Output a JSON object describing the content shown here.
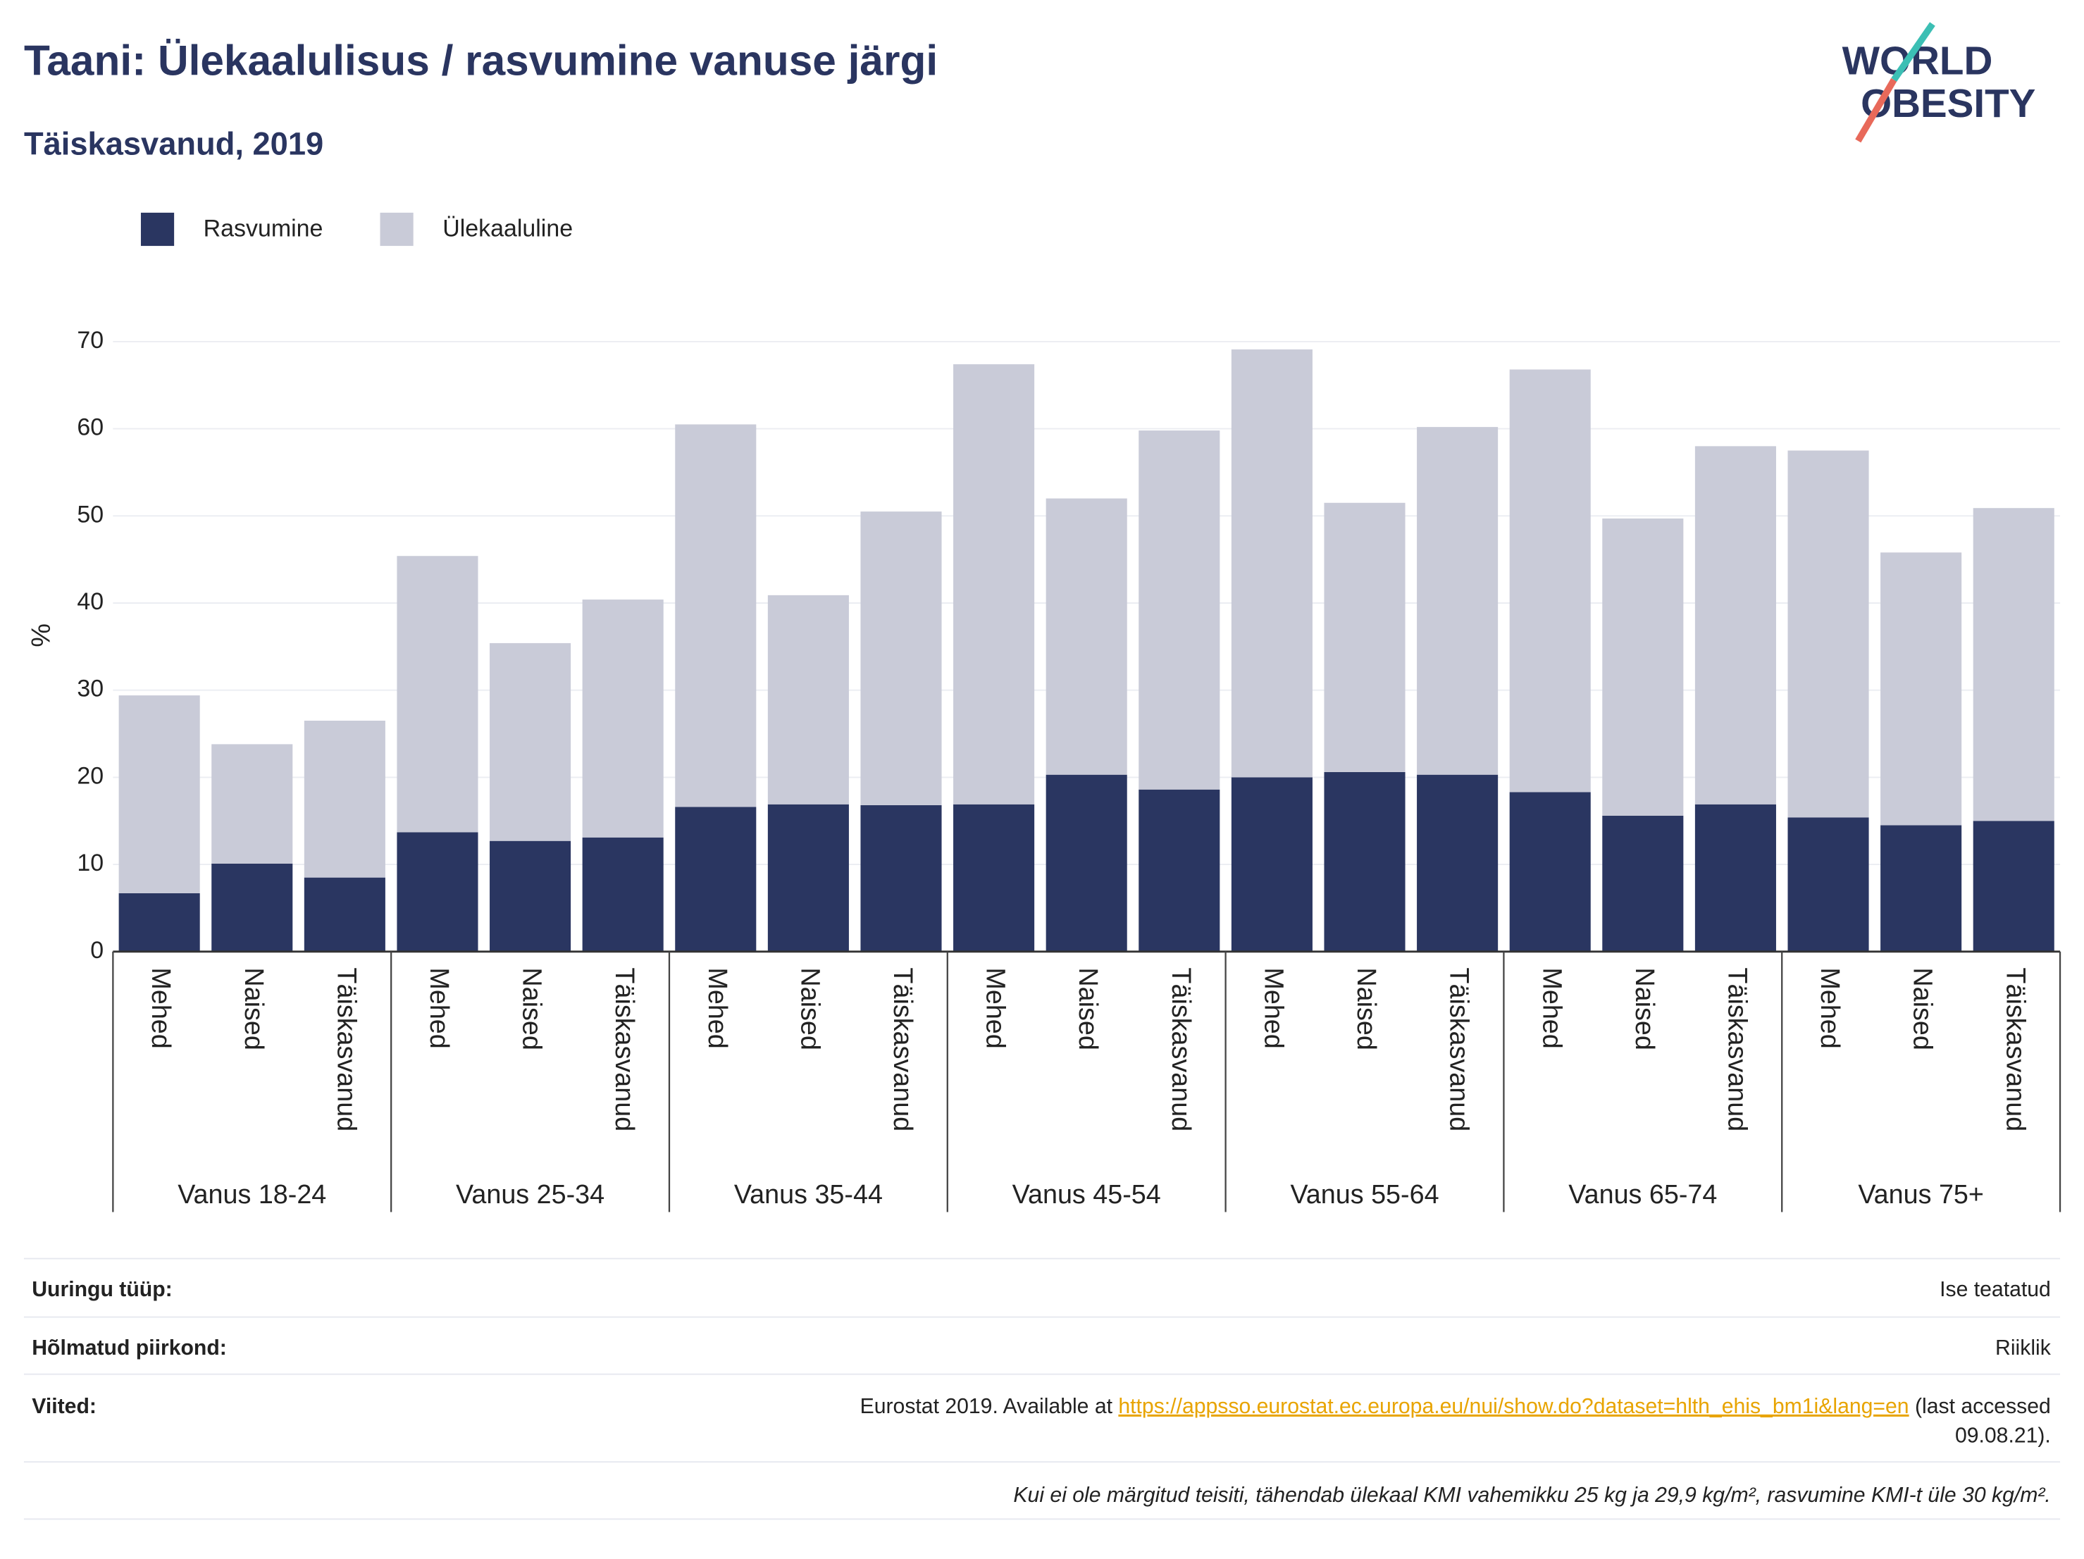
{
  "chart_data": {
    "type": "stacked_bar",
    "title": "Taani: Ülekaalulisus / rasvumine vanuse järgi",
    "subtitle": "Täiskasvanud, 2019",
    "y_label": "%",
    "groups": [
      "Vanus 18-24",
      "Vanus 25-34",
      "Vanus 35-44",
      "Vanus 45-54",
      "Vanus 55-64",
      "Vanus 65-74",
      "Vanus 75+"
    ],
    "categories": [
      "Mehed",
      "Naised",
      "Täiskasvanud",
      "Mehed",
      "Naised",
      "Täiskasvanud",
      "Mehed",
      "Naised",
      "Täiskasvanud",
      "Mehed",
      "Naised",
      "Täiskasvanud",
      "Mehed",
      "Naised",
      "Täiskasvanud",
      "Mehed",
      "Naised",
      "Täiskasvanud",
      "Mehed",
      "Naised",
      "Täiskasvanud"
    ],
    "series": [
      {
        "name": "Rasvumine",
        "color": "#2a3661",
        "values": [
          6.7,
          10.1,
          8.5,
          13.7,
          12.7,
          13.1,
          16.6,
          16.9,
          16.8,
          16.9,
          20.3,
          18.6,
          20.0,
          20.6,
          20.3,
          18.3,
          15.6,
          16.9,
          15.4,
          14.5,
          15.0
        ]
      },
      {
        "name": "Ülekaaluline",
        "color": "#c9cbd8",
        "values": [
          22.7,
          13.7,
          18.0,
          31.7,
          22.7,
          27.3,
          43.9,
          24.0,
          33.7,
          50.5,
          31.7,
          41.2,
          49.1,
          30.9,
          39.9,
          48.5,
          34.1,
          41.1,
          42.1,
          31.3,
          35.9
        ]
      }
    ],
    "ylim": [
      0,
      70
    ],
    "yticks": [
      0,
      10,
      20,
      30,
      40,
      50,
      60,
      70
    ],
    "grid": true,
    "legend": "top-left"
  },
  "logo": [
    "WORLD",
    "OBESITY"
  ],
  "table": {
    "rows": [
      [
        "Uuringu tüüp:",
        "Ise teatatud"
      ],
      [
        "Hõlmatud piirkond:",
        "Riiklik"
      ]
    ],
    "references": {
      "label": "Viited:",
      "before": "Eurostat 2019. Available at ",
      "link": "https://appsso.eurostat.ec.europa.eu/nui/show.do?dataset=hlth_ehis_bm1i&lang=en",
      "after": [
        " (last accessed",
        "09.08.21)."
      ]
    },
    "note": "Kui ei ole märgitud teisiti, tähendab ülekaal KMI vahemikku 25 kg ja 29,9 kg/m², rasvumine KMI-t üle 30 kg/m²."
  }
}
